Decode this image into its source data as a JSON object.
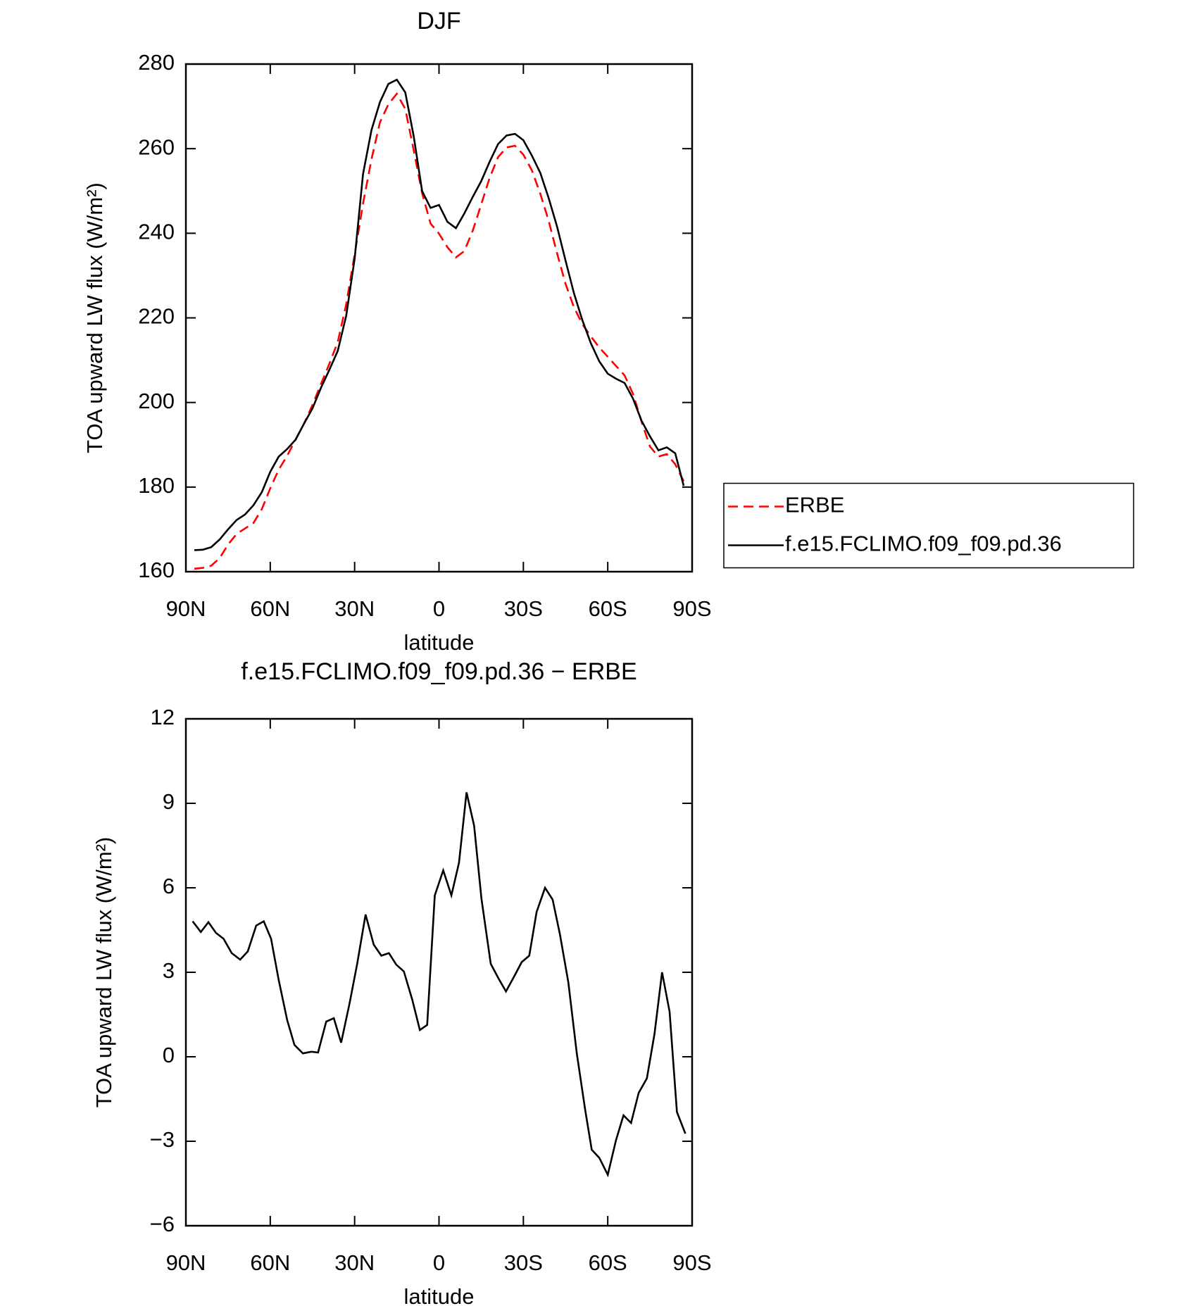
{
  "chart_data": [
    {
      "type": "line",
      "title": "DJF",
      "xlabel": "latitude",
      "ylabel": "TOA upward LW flux (W/m²)",
      "x": [
        87,
        84,
        81,
        78,
        75,
        72,
        69,
        66,
        63,
        60,
        57,
        54,
        51,
        48,
        45,
        42,
        39,
        36,
        33,
        30,
        27,
        24,
        21,
        18,
        15,
        12,
        9,
        6,
        3,
        0,
        -3,
        -6,
        -9,
        -12,
        -15,
        -18,
        -21,
        -24,
        -27,
        -30,
        -33,
        -36,
        -39,
        -42,
        -45,
        -48,
        -51,
        -54,
        -57,
        -60,
        -63,
        -66,
        -69,
        -72,
        -75,
        -78,
        -81,
        -84,
        -87
      ],
      "series": [
        {
          "name": "ERBE",
          "color": "#ff0000",
          "style": "dashed",
          "values": [
            160.7,
            160.9,
            161.4,
            163.2,
            166.4,
            168.9,
            170.2,
            171.5,
            174.8,
            179.7,
            184.1,
            187.4,
            191.2,
            195,
            199.4,
            204.3,
            209.1,
            214.3,
            223.2,
            235,
            247,
            257.5,
            266.2,
            270.5,
            273,
            269.4,
            259.7,
            249.5,
            242.3,
            239.9,
            236.7,
            234.3,
            235.8,
            240.6,
            246.8,
            253.1,
            258,
            260.3,
            260.7,
            258.6,
            254.9,
            249.4,
            242.9,
            235.2,
            228,
            222.5,
            218.5,
            215.6,
            213,
            210.8,
            208.6,
            206.4,
            202,
            195.5,
            189.6,
            187.2,
            187.8,
            185.4,
            181.4
          ]
        },
        {
          "name": "f.e15.FCLIMO.f09_f09.pd.36",
          "color": "#000000",
          "style": "solid",
          "values": [
            165.1,
            165.2,
            165.8,
            167.6,
            170,
            172.2,
            173.5,
            175.7,
            178.8,
            183.6,
            187.2,
            189,
            191.2,
            195,
            198.6,
            203.4,
            207.7,
            212.2,
            220.5,
            234,
            254,
            264.4,
            271,
            275.3,
            276.3,
            273.3,
            263,
            250,
            246,
            246.7,
            242.7,
            241.2,
            244.7,
            248.6,
            252.3,
            256.9,
            261.1,
            263.1,
            263.5,
            262,
            258.4,
            254.3,
            248.3,
            241.5,
            233.5,
            225.8,
            219.4,
            214,
            209.7,
            206.8,
            205.6,
            204.6,
            200.9,
            195.7,
            192,
            188.7,
            189.4,
            188,
            180.3
          ]
        }
      ],
      "xlim": [
        90,
        -90
      ],
      "xticks": [
        {
          "value": 90,
          "label": "90N"
        },
        {
          "value": 60,
          "label": "60N"
        },
        {
          "value": 30,
          "label": "30N"
        },
        0,
        {
          "value": -30,
          "label": "30S"
        },
        {
          "value": -60,
          "label": "60S"
        },
        {
          "value": -90,
          "label": "90S"
        }
      ],
      "ylim": [
        160,
        280
      ],
      "yticks": [
        160,
        180,
        200,
        220,
        240,
        260,
        280
      ],
      "legend": "outside-right"
    },
    {
      "type": "line",
      "title": "f.e15.FCLIMO.f09_f09.pd.36 − ERBE",
      "xlabel": "latitude",
      "ylabel": "TOA upward LW flux (W/m²)",
      "x": [
        87.6,
        84.7,
        82,
        79.3,
        76.6,
        73.7,
        70.7,
        68,
        65,
        62.3,
        59.7,
        57,
        54,
        51.4,
        48.4,
        45.4,
        43,
        40.1,
        37.4,
        34.8,
        31.8,
        29.1,
        26.1,
        23.2,
        20.5,
        17.8,
        15.2,
        12.5,
        9.5,
        6.8,
        4.2,
        1.5,
        -1.5,
        -4.4,
        -7.1,
        -9.8,
        -12.5,
        -15.1,
        -18.4,
        -21.1,
        -23.8,
        -26.7,
        -29.4,
        -32.1,
        -34.7,
        -37.7,
        -40.4,
        -43,
        -46,
        -49,
        -52,
        -54.3,
        -57,
        -60,
        -62.9,
        -65.6,
        -68.3,
        -71,
        -73.9,
        -76.6,
        -79.3,
        -82,
        -84.6,
        -87.6
      ],
      "series": [
        {
          "color": "#000000",
          "style": "solid",
          "values": [
            4.81,
            4.43,
            4.78,
            4.4,
            4.19,
            3.68,
            3.45,
            3.74,
            4.66,
            4.81,
            4.19,
            2.73,
            1.31,
            0.42,
            0.12,
            0.18,
            0.15,
            1.25,
            1.37,
            0.5,
            1.9,
            3.3,
            5.05,
            3.98,
            3.59,
            3.68,
            3.27,
            3.03,
            2.02,
            0.95,
            1.13,
            5.73,
            6.62,
            5.73,
            6.89,
            9.39,
            8.2,
            5.61,
            3.3,
            2.79,
            2.32,
            2.85,
            3.36,
            3.59,
            5.14,
            6,
            5.58,
            4.34,
            2.64,
            0.12,
            -1.9,
            -3.3,
            -3.59,
            -4.19,
            -2.97,
            -2.08,
            -2.35,
            -1.28,
            -0.77,
            0.8,
            3,
            1.6,
            -1.96,
            -2.73
          ]
        }
      ],
      "xlim": [
        90,
        -90
      ],
      "xticks": [
        {
          "value": 90,
          "label": "90N"
        },
        {
          "value": 60,
          "label": "60N"
        },
        {
          "value": 30,
          "label": "30N"
        },
        0,
        {
          "value": -30,
          "label": "30S"
        },
        {
          "value": -60,
          "label": "60S"
        },
        {
          "value": -90,
          "label": "90S"
        }
      ],
      "ylim": [
        -6,
        12
      ],
      "yticks": [
        {
          "value": -6,
          "label": "−6"
        },
        {
          "value": -3,
          "label": "−3"
        },
        0,
        3,
        6,
        9,
        12
      ]
    }
  ]
}
